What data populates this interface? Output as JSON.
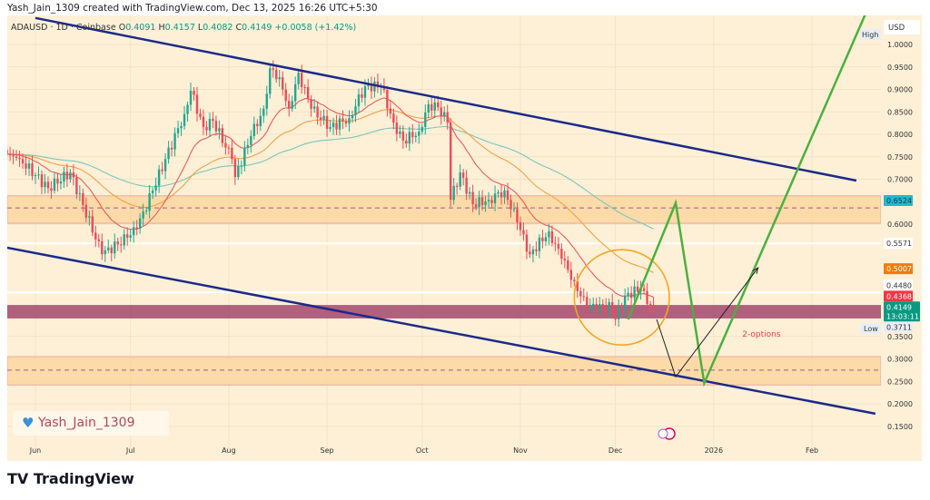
{
  "header": {
    "credit": "Yash_Jain_1309 created with TradingView.com, Dec 13, 2025 16:26 UTC+5:30"
  },
  "legend": {
    "symbol": "ADAUSD · 1D · Coinbase",
    "o_label": "O",
    "o": "0.4091",
    "h_label": "H",
    "h": "0.4157",
    "l_label": "L",
    "l": "0.4082",
    "c_label": "C",
    "c": "0.4149",
    "change": "+0.0058 (+1.42%)"
  },
  "watermark": {
    "text": "Yash_Jain_1309",
    "icon": "heart-icon"
  },
  "footer": {
    "logo": "TradingView"
  },
  "chart_data": {
    "type": "candlestick",
    "symbol": "ADAUSD",
    "interval": "1D",
    "exchange": "Coinbase",
    "currency": "USD",
    "ylim": [
      0.13,
      1.06
    ],
    "y_ticks": [
      "1.0000",
      "0.9500",
      "0.9000",
      "0.8500",
      "0.8000",
      "0.7500",
      "0.7000",
      "0.6000",
      "0.3500",
      "0.3000",
      "0.2500",
      "0.2000",
      "0.1500"
    ],
    "x_ticks": [
      {
        "label": "Jun",
        "date": "2025-06-01"
      },
      {
        "label": "Jul",
        "date": "2025-07-01"
      },
      {
        "label": "Aug",
        "date": "2025-08-01"
      },
      {
        "label": "Sep",
        "date": "2025-09-01"
      },
      {
        "label": "Oct",
        "date": "2025-10-01"
      },
      {
        "label": "Nov",
        "date": "2025-11-01"
      },
      {
        "label": "Dec",
        "date": "2025-12-01"
      },
      {
        "label": "2026",
        "date": "2026-01-01"
      },
      {
        "label": "Feb",
        "date": "2026-02-01"
      }
    ],
    "close_path": [
      [
        "2025-05-23",
        0.756
      ],
      [
        "2025-05-27",
        0.745
      ],
      [
        "2025-06-05",
        0.68
      ],
      [
        "2025-06-12",
        0.715
      ],
      [
        "2025-06-22",
        0.533
      ],
      [
        "2025-06-30",
        0.57
      ],
      [
        "2025-07-03",
        0.59
      ],
      [
        "2025-07-08",
        0.675
      ],
      [
        "2025-07-12",
        0.745
      ],
      [
        "2025-07-18",
        0.845
      ],
      [
        "2025-07-20",
        0.897
      ],
      [
        "2025-07-24",
        0.816
      ],
      [
        "2025-07-27",
        0.83
      ],
      [
        "2025-08-02",
        0.745
      ],
      [
        "2025-08-03",
        0.705
      ],
      [
        "2025-08-08",
        0.796
      ],
      [
        "2025-08-12",
        0.857
      ],
      [
        "2025-08-14",
        0.947
      ],
      [
        "2025-08-17",
        0.927
      ],
      [
        "2025-08-20",
        0.857
      ],
      [
        "2025-08-23",
        0.937
      ],
      [
        "2025-08-27",
        0.857
      ],
      [
        "2025-09-02",
        0.816
      ],
      [
        "2025-09-08",
        0.836
      ],
      [
        "2025-09-13",
        0.907
      ],
      [
        "2025-09-18",
        0.907
      ],
      [
        "2025-09-22",
        0.826
      ],
      [
        "2025-09-25",
        0.786
      ],
      [
        "2025-09-30",
        0.806
      ],
      [
        "2025-10-03",
        0.867
      ],
      [
        "2025-10-06",
        0.86
      ],
      [
        "2025-10-09",
        0.826
      ],
      [
        "2025-10-10",
        0.654
      ],
      [
        "2025-10-13",
        0.715
      ],
      [
        "2025-10-17",
        0.644
      ],
      [
        "2025-10-22",
        0.654
      ],
      [
        "2025-10-27",
        0.675
      ],
      [
        "2025-10-31",
        0.604
      ],
      [
        "2025-11-04",
        0.533
      ],
      [
        "2025-11-10",
        0.584
      ],
      [
        "2025-11-14",
        0.523
      ],
      [
        "2025-11-18",
        0.473
      ],
      [
        "2025-11-22",
        0.412
      ],
      [
        "2025-11-26",
        0.422
      ],
      [
        "2025-11-30",
        0.412
      ],
      [
        "2025-12-01",
        0.388
      ],
      [
        "2025-12-04",
        0.44
      ],
      [
        "2025-12-09",
        0.457
      ],
      [
        "2025-12-11",
        0.422
      ],
      [
        "2025-12-13",
        0.4149
      ]
    ],
    "moving_averages": [
      {
        "color": "#ef5a5a"
      },
      {
        "color": "#f5a142"
      },
      {
        "color": "#7cc6b8"
      }
    ],
    "price_labels": [
      {
        "text": "0.6524",
        "price": 0.6524,
        "bg": "#22b8cf",
        "fg": "#0b3a44"
      },
      {
        "text": "0.5571",
        "price": 0.5571,
        "bg": "#ffffff",
        "fg": "#333333"
      },
      {
        "text": "0.5007",
        "price": 0.5007,
        "bg": "#f57c00",
        "fg": "#ffffff"
      },
      {
        "text": "0.4480",
        "price": 0.448,
        "bg": "#ffffff",
        "fg": "#333333"
      },
      {
        "text": "0.4368",
        "price": 0.4368,
        "bg": "#f23645",
        "fg": "#ffffff"
      },
      {
        "text": "0.4149",
        "sub": "13:03:11",
        "price": 0.4149,
        "bg": "#089981",
        "fg": "#ffffff"
      },
      {
        "text": "0.3711",
        "price": 0.3711,
        "bg": "#e8eef7",
        "fg": "#333333"
      }
    ],
    "high_label": "High",
    "low_label": "Low",
    "drawings": {
      "channel_upper": [
        [
          "2025-06-01",
          1.059
        ],
        [
          "2026-02-15",
          0.697
        ]
      ],
      "channel_lower": [
        [
          "2025-05-22",
          0.549
        ],
        [
          "2026-02-21",
          0.178
        ]
      ],
      "zones": [
        {
          "top": 0.663,
          "bottom": 0.602,
          "mid": 0.636,
          "color": "#fcd49a"
        },
        {
          "top": 0.305,
          "bottom": 0.242,
          "mid": 0.275,
          "color": "#fcd49a"
        },
        {
          "top": 0.42,
          "bottom": 0.39,
          "color": "#a3476e"
        }
      ],
      "horizontal_lines": [
        0.5571,
        0.448
      ],
      "circle": {
        "from": "2025-11-18",
        "to": "2025-12-18",
        "top": 0.543,
        "bottom": 0.331,
        "color": "#f5a623"
      },
      "green_path": [
        [
          "2025-12-05",
          0.388
        ],
        [
          "2025-12-20",
          0.647
        ],
        [
          "2025-12-29",
          0.246
        ],
        [
          "2026-02-18",
          1.07
        ]
      ],
      "black_path": [
        [
          "2025-12-14",
          0.388
        ],
        [
          "2025-12-20",
          0.26
        ],
        [
          "2026-01-15",
          0.503
        ]
      ],
      "annotation": {
        "text": "2-options",
        "date": "2026-01-10",
        "price": 0.35,
        "color": "#e0443f"
      }
    }
  }
}
